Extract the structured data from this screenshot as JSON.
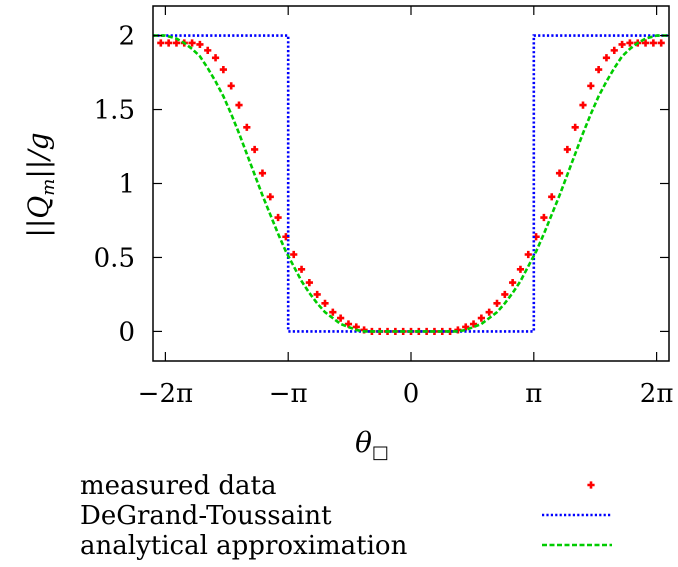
{
  "chart_data": {
    "type": "line",
    "xlabel": "θ",
    "xlabel_subscript": "□",
    "ylabel": "||Q_m||/g",
    "ylabel_parts": {
      "open": "||",
      "var": "Q",
      "sub": "m",
      "close": "||/g"
    },
    "xlim": [
      -6.6,
      6.6
    ],
    "ylim": [
      -0.2,
      2.2
    ],
    "xticks": [
      {
        "value": -6.283185,
        "label": "−2π"
      },
      {
        "value": -3.141593,
        "label": "−π"
      },
      {
        "value": 0,
        "label": "0"
      },
      {
        "value": 3.141593,
        "label": "π"
      },
      {
        "value": 6.283185,
        "label": "2π"
      }
    ],
    "yticks": [
      {
        "value": 0,
        "label": "0"
      },
      {
        "value": 0.5,
        "label": "0.5"
      },
      {
        "value": 1,
        "label": "1"
      },
      {
        "value": 1.5,
        "label": "1.5"
      },
      {
        "value": 2,
        "label": "2"
      }
    ],
    "grid": false,
    "legend_position": "below",
    "series": [
      {
        "name": "measured data",
        "marker": "plus",
        "color": "#ff0000",
        "points": [
          [
            -6.4,
            1.95
          ],
          [
            -6.2,
            1.95
          ],
          [
            -6.0,
            1.95
          ],
          [
            -5.8,
            1.95
          ],
          [
            -5.6,
            1.95
          ],
          [
            -5.4,
            1.94
          ],
          [
            -5.2,
            1.9
          ],
          [
            -5.0,
            1.85
          ],
          [
            -4.8,
            1.77
          ],
          [
            -4.6,
            1.66
          ],
          [
            -4.4,
            1.53
          ],
          [
            -4.2,
            1.38
          ],
          [
            -4.0,
            1.23
          ],
          [
            -3.8,
            1.07
          ],
          [
            -3.6,
            0.91
          ],
          [
            -3.4,
            0.77
          ],
          [
            -3.2,
            0.64
          ],
          [
            -3.0,
            0.52
          ],
          [
            -2.8,
            0.42
          ],
          [
            -2.6,
            0.33
          ],
          [
            -2.4,
            0.25
          ],
          [
            -2.2,
            0.19
          ],
          [
            -2.0,
            0.13
          ],
          [
            -1.8,
            0.09
          ],
          [
            -1.6,
            0.05
          ],
          [
            -1.4,
            0.03
          ],
          [
            -1.2,
            0.01
          ],
          [
            -1.0,
            0.0
          ],
          [
            -0.8,
            0.0
          ],
          [
            -0.6,
            0.0
          ],
          [
            -0.4,
            0.0
          ],
          [
            -0.2,
            0.0
          ],
          [
            0.0,
            0.0
          ],
          [
            0.2,
            0.0
          ],
          [
            0.4,
            0.0
          ],
          [
            0.6,
            0.0
          ],
          [
            0.8,
            0.0
          ],
          [
            1.0,
            0.0
          ],
          [
            1.2,
            0.01
          ],
          [
            1.4,
            0.03
          ],
          [
            1.6,
            0.05
          ],
          [
            1.8,
            0.09
          ],
          [
            2.0,
            0.13
          ],
          [
            2.2,
            0.19
          ],
          [
            2.4,
            0.25
          ],
          [
            2.6,
            0.33
          ],
          [
            2.8,
            0.42
          ],
          [
            3.0,
            0.52
          ],
          [
            3.2,
            0.64
          ],
          [
            3.4,
            0.77
          ],
          [
            3.6,
            0.91
          ],
          [
            3.8,
            1.07
          ],
          [
            4.0,
            1.23
          ],
          [
            4.2,
            1.38
          ],
          [
            4.4,
            1.53
          ],
          [
            4.6,
            1.66
          ],
          [
            4.8,
            1.77
          ],
          [
            5.0,
            1.85
          ],
          [
            5.2,
            1.9
          ],
          [
            5.4,
            1.94
          ],
          [
            5.6,
            1.95
          ],
          [
            5.8,
            1.95
          ],
          [
            6.0,
            1.95
          ],
          [
            6.2,
            1.95
          ],
          [
            6.4,
            1.95
          ]
        ]
      },
      {
        "name": "DeGrand-Toussaint",
        "style": "dotted",
        "color": "#0000ff",
        "points": [
          [
            -6.6,
            2.0
          ],
          [
            -3.141593,
            2.0
          ],
          [
            -3.141593,
            0.0
          ],
          [
            3.141593,
            0.0
          ],
          [
            3.141593,
            2.0
          ],
          [
            6.6,
            2.0
          ]
        ]
      },
      {
        "name": "analytical approximation",
        "style": "dashed",
        "color": "#00cc00",
        "points": [
          [
            -6.6,
            2.0
          ],
          [
            -6.283185,
            2.0
          ],
          [
            -6.0,
            1.98
          ],
          [
            -5.8,
            1.95
          ],
          [
            -5.6,
            1.91
          ],
          [
            -5.4,
            1.86
          ],
          [
            -5.2,
            1.78
          ],
          [
            -5.0,
            1.69
          ],
          [
            -4.8,
            1.59
          ],
          [
            -4.6,
            1.47
          ],
          [
            -4.4,
            1.34
          ],
          [
            -4.2,
            1.2
          ],
          [
            -4.0,
            1.06
          ],
          [
            -3.8,
            0.92
          ],
          [
            -3.6,
            0.79
          ],
          [
            -3.4,
            0.66
          ],
          [
            -3.2,
            0.54
          ],
          [
            -3.0,
            0.44
          ],
          [
            -2.8,
            0.34
          ],
          [
            -2.6,
            0.26
          ],
          [
            -2.4,
            0.19
          ],
          [
            -2.2,
            0.13
          ],
          [
            -2.0,
            0.09
          ],
          [
            -1.8,
            0.05
          ],
          [
            -1.6,
            0.03
          ],
          [
            -1.4,
            0.01
          ],
          [
            -1.2,
            0.0
          ],
          [
            0.0,
            0.0
          ],
          [
            1.2,
            0.0
          ],
          [
            1.4,
            0.01
          ],
          [
            1.6,
            0.03
          ],
          [
            1.8,
            0.05
          ],
          [
            2.0,
            0.09
          ],
          [
            2.2,
            0.13
          ],
          [
            2.4,
            0.19
          ],
          [
            2.6,
            0.26
          ],
          [
            2.8,
            0.34
          ],
          [
            3.0,
            0.44
          ],
          [
            3.2,
            0.54
          ],
          [
            3.4,
            0.66
          ],
          [
            3.6,
            0.79
          ],
          [
            3.8,
            0.92
          ],
          [
            4.0,
            1.06
          ],
          [
            4.2,
            1.2
          ],
          [
            4.4,
            1.34
          ],
          [
            4.6,
            1.47
          ],
          [
            4.8,
            1.59
          ],
          [
            5.0,
            1.69
          ],
          [
            5.2,
            1.78
          ],
          [
            5.4,
            1.86
          ],
          [
            5.6,
            1.91
          ],
          [
            5.8,
            1.95
          ],
          [
            6.0,
            1.98
          ],
          [
            6.283185,
            2.0
          ],
          [
            6.6,
            2.0
          ]
        ]
      }
    ]
  }
}
